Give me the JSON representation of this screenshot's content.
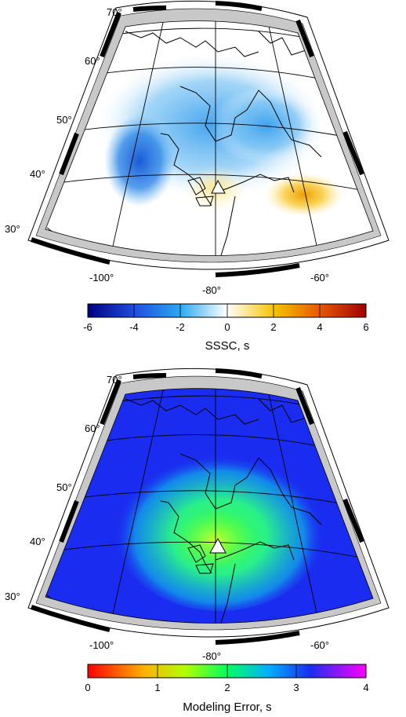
{
  "maps": [
    {
      "id": "sssc",
      "lat_labels": [
        "70°",
        "60°",
        "50°",
        "40°",
        "30°"
      ],
      "lon_labels": [
        "-100°",
        "-80°",
        "-60°"
      ],
      "colorbar": {
        "title": "SSSC, s",
        "ticks": [
          "-6",
          "-4",
          "-2",
          "0",
          "2",
          "4",
          "6"
        ],
        "range": [
          -6,
          6
        ],
        "colors": [
          "#000080",
          "#1f4fe0",
          "#2aa0f0",
          "#ffffff",
          "#f5c400",
          "#e85a00",
          "#a00000"
        ]
      }
    },
    {
      "id": "modeling-error",
      "lat_labels": [
        "70°",
        "60°",
        "50°",
        "40°",
        "30°"
      ],
      "lon_labels": [
        "-100°",
        "-80°",
        "-60°"
      ],
      "colorbar": {
        "title": "Modeling Error, s",
        "ticks": [
          "0",
          "1",
          "2",
          "3",
          "4"
        ],
        "range": [
          0,
          4
        ],
        "colors": [
          "#ff0000",
          "#ffb000",
          "#a0ff00",
          "#00ff80",
          "#00a0ff",
          "#1a2cf0",
          "#ff00ff"
        ]
      }
    }
  ]
}
